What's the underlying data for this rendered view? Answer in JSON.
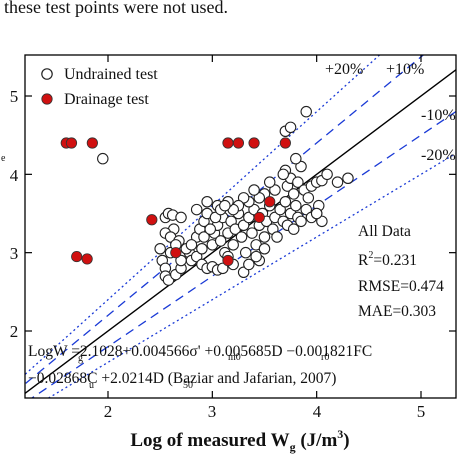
{
  "page": {
    "top_caption": "these test points were not used."
  },
  "chart_data": {
    "type": "scatter",
    "xlabel_parts": {
      "main": "Log of measured W",
      "sub": "g",
      "unit_open": " (J/m",
      "unit_sup": "3",
      "unit_close": ")"
    },
    "ylabel_fragment": "e",
    "x_ticks": [
      "2",
      "3",
      "4",
      "5"
    ],
    "y_ticks": [
      "2",
      "3",
      "4",
      "5"
    ],
    "xlim": [
      1.1,
      5.55
    ],
    "ylim": [
      1.6,
      5.45
    ],
    "grid": false,
    "legend": {
      "position": "top-left",
      "items": [
        {
          "label": "Undrained test",
          "marker": "open-circle",
          "color": "#222222"
        },
        {
          "label": "Drainage test",
          "marker": "filled-circle",
          "color": "#d01010"
        }
      ]
    },
    "reference_lines": [
      {
        "label": "",
        "style": "solid",
        "color": "#000000",
        "factor": 1.0
      },
      {
        "label": "+10%",
        "style": "dash",
        "color": "#1a3ad6",
        "factor": 1.1
      },
      {
        "label": "+20%",
        "style": "dot",
        "color": "#1a3ad6",
        "factor": 1.2
      },
      {
        "label": "-10%",
        "style": "dash",
        "color": "#1a3ad6",
        "factor": 0.9
      },
      {
        "label": "-20%",
        "style": "dot",
        "color": "#1a3ad6",
        "factor": 0.8
      }
    ],
    "statistics": {
      "header": "All Data",
      "r2_prefix": "R",
      "r2_sup": "2",
      "r2_value": "=0.231",
      "rmse": "RMSE=0.474",
      "mae": "MAE=0.303"
    },
    "equation": {
      "line1": "LogW  =2.1028+0.004566σ'  +0.005685D  −0.001821FC",
      "line2": "−0.02868C  +2.0214D      (Baziar and Jafarian, 2007)"
    },
    "series": [
      {
        "name": "Undrained test",
        "points": [
          [
            1.95,
            4.2
          ],
          [
            2.55,
            3.45
          ],
          [
            2.58,
            3.5
          ],
          [
            2.62,
            3.48
          ],
          [
            2.7,
            3.45
          ],
          [
            2.63,
            3.3
          ],
          [
            2.55,
            3.25
          ],
          [
            2.6,
            3.2
          ],
          [
            2.5,
            3.05
          ],
          [
            2.52,
            2.9
          ],
          [
            2.55,
            2.8
          ],
          [
            2.55,
            2.7
          ],
          [
            2.58,
            2.65
          ],
          [
            2.65,
            2.72
          ],
          [
            2.7,
            2.8
          ],
          [
            2.72,
            2.95
          ],
          [
            2.78,
            3.0
          ],
          [
            2.8,
            2.9
          ],
          [
            2.85,
            2.95
          ],
          [
            2.9,
            2.85
          ],
          [
            2.95,
            2.8
          ],
          [
            3.0,
            2.82
          ],
          [
            3.05,
            2.78
          ],
          [
            3.1,
            2.8
          ],
          [
            2.85,
            3.2
          ],
          [
            2.88,
            3.3
          ],
          [
            2.92,
            3.4
          ],
          [
            2.95,
            3.5
          ],
          [
            3.0,
            3.1
          ],
          [
            3.02,
            3.25
          ],
          [
            3.05,
            3.35
          ],
          [
            3.08,
            3.15
          ],
          [
            3.1,
            3.45
          ],
          [
            3.12,
            3.0
          ],
          [
            3.15,
            3.25
          ],
          [
            3.18,
            3.4
          ],
          [
            3.2,
            3.1
          ],
          [
            3.22,
            3.3
          ],
          [
            3.25,
            3.5
          ],
          [
            3.28,
            3.2
          ],
          [
            3.3,
            3.35
          ],
          [
            3.32,
            3.0
          ],
          [
            3.35,
            3.45
          ],
          [
            3.38,
            3.25
          ],
          [
            3.4,
            3.55
          ],
          [
            3.42,
            3.1
          ],
          [
            3.45,
            3.35
          ],
          [
            3.48,
            3.5
          ],
          [
            3.5,
            3.2
          ],
          [
            3.52,
            3.4
          ],
          [
            3.55,
            3.6
          ],
          [
            3.58,
            3.3
          ],
          [
            3.6,
            3.45
          ],
          [
            3.62,
            3.2
          ],
          [
            3.65,
            3.55
          ],
          [
            3.68,
            3.4
          ],
          [
            3.7,
            3.65
          ],
          [
            3.72,
            3.35
          ],
          [
            3.75,
            3.5
          ],
          [
            3.78,
            3.3
          ],
          [
            3.8,
            3.6
          ],
          [
            3.82,
            3.45
          ],
          [
            3.85,
            3.4
          ],
          [
            3.9,
            3.55
          ],
          [
            3.95,
            3.45
          ],
          [
            4.0,
            3.5
          ],
          [
            4.02,
            3.6
          ],
          [
            4.05,
            3.4
          ],
          [
            3.72,
            3.85
          ],
          [
            3.75,
            3.95
          ],
          [
            3.78,
            3.75
          ],
          [
            3.7,
            4.05
          ],
          [
            3.68,
            4.0
          ],
          [
            3.82,
            3.9
          ],
          [
            3.88,
            3.8
          ],
          [
            3.95,
            3.85
          ],
          [
            4.0,
            3.9
          ],
          [
            4.05,
            3.92
          ],
          [
            3.92,
            3.7
          ],
          [
            3.6,
            3.8
          ],
          [
            3.55,
            3.9
          ],
          [
            3.5,
            3.75
          ],
          [
            3.45,
            3.7
          ],
          [
            3.4,
            3.8
          ],
          [
            3.35,
            3.65
          ],
          [
            3.3,
            3.7
          ],
          [
            3.25,
            3.6
          ],
          [
            3.2,
            3.55
          ],
          [
            3.15,
            3.65
          ],
          [
            3.05,
            3.6
          ],
          [
            2.95,
            3.65
          ],
          [
            2.85,
            3.55
          ],
          [
            3.7,
            4.55
          ],
          [
            3.75,
            4.6
          ],
          [
            3.9,
            4.8
          ],
          [
            4.0,
            3.5
          ],
          [
            4.1,
            4.0
          ],
          [
            4.2,
            3.9
          ],
          [
            4.3,
            3.95
          ],
          [
            3.85,
            4.1
          ],
          [
            3.8,
            4.2
          ],
          [
            3.3,
            2.75
          ],
          [
            3.35,
            2.85
          ],
          [
            3.45,
            2.9
          ],
          [
            3.2,
            2.85
          ],
          [
            3.15,
            2.95
          ],
          [
            3.42,
            2.95
          ],
          [
            3.5,
            3.05
          ],
          [
            2.75,
            3.05
          ],
          [
            2.7,
            2.9
          ],
          [
            2.8,
            3.1
          ],
          [
            2.9,
            3.05
          ],
          [
            2.92,
            3.2
          ],
          [
            2.98,
            3.3
          ],
          [
            3.03,
            3.45
          ],
          [
            3.08,
            3.55
          ],
          [
            3.12,
            3.6
          ],
          [
            2.68,
            3.15
          ],
          [
            2.6,
            3.0
          ],
          [
            2.65,
            3.1
          ]
        ]
      },
      {
        "name": "Drainage test",
        "points": [
          [
            1.6,
            4.4
          ],
          [
            1.65,
            4.4
          ],
          [
            1.85,
            4.4
          ],
          [
            1.7,
            2.95
          ],
          [
            1.8,
            2.92
          ],
          [
            2.42,
            3.42
          ],
          [
            2.65,
            3.0
          ],
          [
            3.15,
            2.9
          ],
          [
            3.25,
            4.4
          ],
          [
            3.4,
            4.4
          ],
          [
            3.55,
            3.65
          ],
          [
            3.7,
            4.4
          ],
          [
            3.45,
            3.45
          ],
          [
            3.15,
            4.4
          ]
        ]
      }
    ]
  }
}
